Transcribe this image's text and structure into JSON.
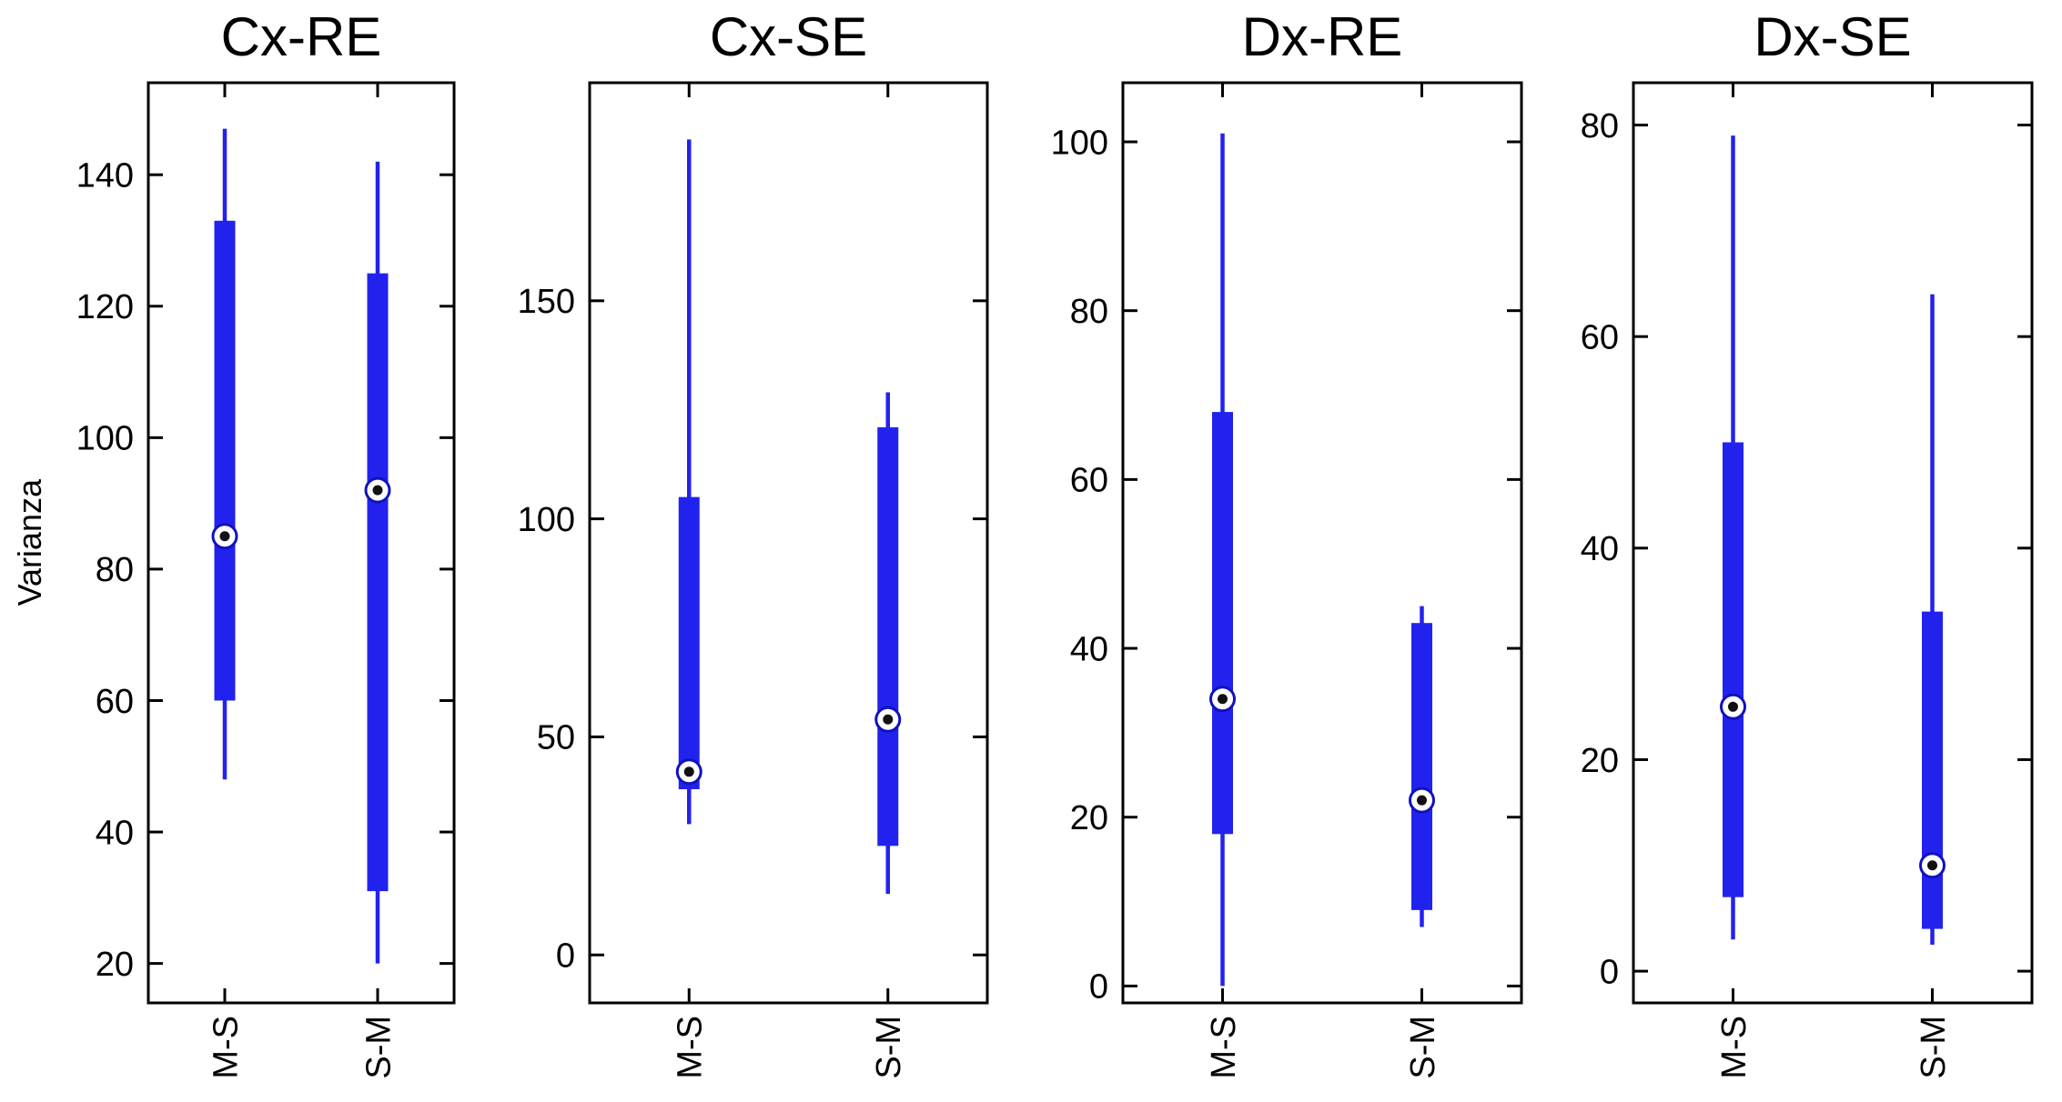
{
  "figure": {
    "background_color": "#ffffff",
    "axis_color": "#000000",
    "box_color": "#2222ee",
    "median_ring_color": "#1111c0",
    "median_dot_color": "#111111"
  },
  "chart_data": [
    {
      "type": "boxplot",
      "title": "Cx-RE",
      "ylabel": "Varianza",
      "categories": [
        "M-S",
        "S-M"
      ],
      "ylim": [
        14,
        154
      ],
      "yticks": [
        20,
        40,
        60,
        80,
        100,
        120,
        140
      ],
      "series": [
        {
          "category": "M-S",
          "whisker_low": 48,
          "q1": 60,
          "median": 85,
          "q3": 133,
          "whisker_high": 147
        },
        {
          "category": "S-M",
          "whisker_low": 20,
          "q1": 31,
          "median": 92,
          "q3": 125,
          "whisker_high": 142
        }
      ]
    },
    {
      "type": "boxplot",
      "title": "Cx-SE",
      "categories": [
        "M-S",
        "S-M"
      ],
      "ylim": [
        -11,
        200
      ],
      "yticks": [
        0,
        50,
        100,
        150
      ],
      "series": [
        {
          "category": "M-S",
          "whisker_low": 30,
          "q1": 38,
          "median": 42,
          "q3": 105,
          "whisker_high": 187
        },
        {
          "category": "S-M",
          "whisker_low": 14,
          "q1": 25,
          "median": 54,
          "q3": 121,
          "whisker_high": 129
        }
      ]
    },
    {
      "type": "boxplot",
      "title": "Dx-RE",
      "categories": [
        "M-S",
        "S-M"
      ],
      "ylim": [
        -2,
        107
      ],
      "yticks": [
        0,
        20,
        40,
        60,
        80,
        100
      ],
      "series": [
        {
          "category": "M-S",
          "whisker_low": 0,
          "q1": 18,
          "median": 34,
          "q3": 68,
          "whisker_high": 101
        },
        {
          "category": "S-M",
          "whisker_low": 7,
          "q1": 9,
          "median": 22,
          "q3": 43,
          "whisker_high": 45
        }
      ]
    },
    {
      "type": "boxplot",
      "title": "Dx-SE",
      "categories": [
        "M-S",
        "S-M"
      ],
      "ylim": [
        -3,
        84
      ],
      "yticks": [
        0,
        20,
        40,
        60,
        80
      ],
      "series": [
        {
          "category": "M-S",
          "whisker_low": 3,
          "q1": 7,
          "median": 25,
          "q3": 50,
          "whisker_high": 79
        },
        {
          "category": "S-M",
          "whisker_low": 2.5,
          "q1": 4,
          "median": 10,
          "q3": 34,
          "whisker_high": 64
        }
      ]
    }
  ]
}
